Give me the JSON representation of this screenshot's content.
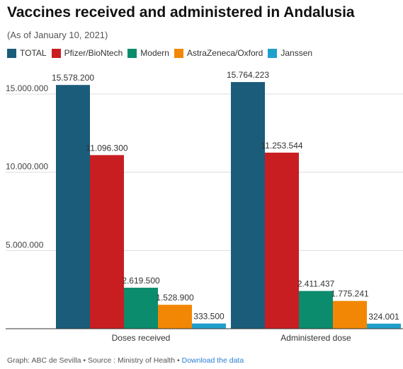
{
  "header": {
    "title": "Vaccines received and administered in Andalusia",
    "subtitle": "(As of January 10, 2021)"
  },
  "footer": {
    "credit": "Graph: ABC de Sevilla • Source : Ministry of Health • ",
    "link": "Download the data"
  },
  "chart_data": {
    "type": "bar",
    "categories": [
      "Doses received",
      "Administered dose"
    ],
    "series": [
      {
        "name": "TOTAL",
        "color": "#1a5c7a",
        "values": [
          15578200,
          15764223
        ],
        "labels": [
          "15.578.200",
          "15.764.223"
        ]
      },
      {
        "name": "Pfizer/BioNtech",
        "color": "#c81e22",
        "values": [
          11096300,
          11253544
        ],
        "labels": [
          "11.096.300",
          "11.253.544"
        ]
      },
      {
        "name": "Modern",
        "color": "#0b8c6c",
        "values": [
          2619500,
          2411437
        ],
        "labels": [
          "2.619.500",
          "2.411.437"
        ]
      },
      {
        "name": "AstraZeneca/Oxford",
        "color": "#f28705",
        "values": [
          1528900,
          1775241
        ],
        "labels": [
          "1.528.900",
          "1.775.241"
        ]
      },
      {
        "name": "Janssen",
        "color": "#1f9fcc",
        "values": [
          333500,
          324001
        ],
        "labels": [
          "333.500",
          "324.001"
        ]
      }
    ],
    "yticks": [
      5000000,
      10000000,
      15000000
    ],
    "ytick_labels": [
      "5.000.000",
      "10.000.000",
      "15.000.000"
    ],
    "ylim": [
      0,
      16000000
    ],
    "legend_position": "top-left",
    "grid": true
  }
}
